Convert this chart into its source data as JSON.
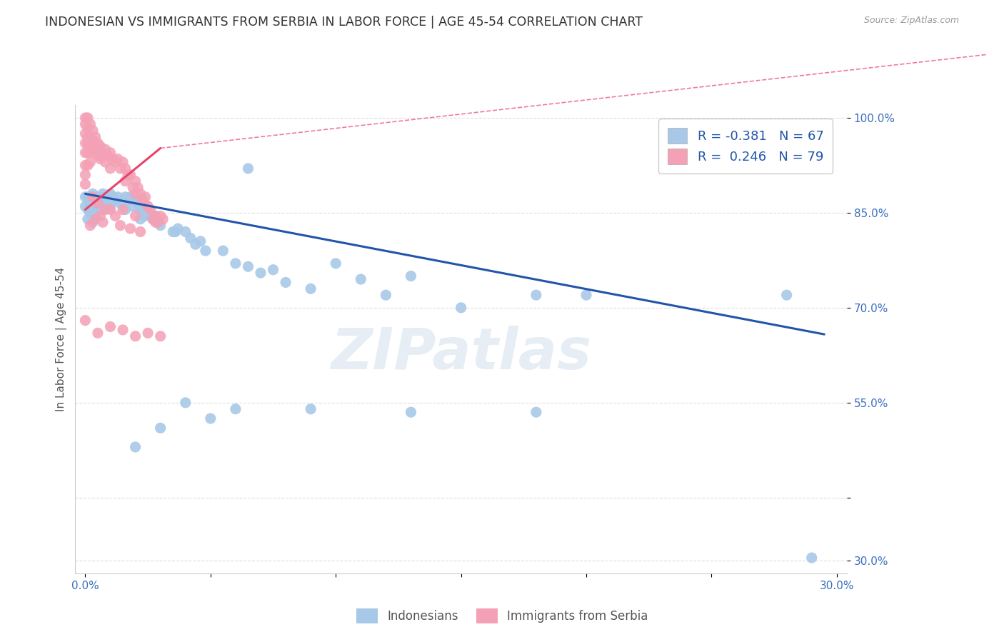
{
  "title": "INDONESIAN VS IMMIGRANTS FROM SERBIA IN LABOR FORCE | AGE 45-54 CORRELATION CHART",
  "source": "Source: ZipAtlas.com",
  "ylabel": "In Labor Force | Age 45-54",
  "xlim": [
    -0.004,
    0.304
  ],
  "ylim": [
    0.28,
    1.02
  ],
  "xticks": [
    0.0,
    0.05,
    0.1,
    0.15,
    0.2,
    0.25,
    0.3
  ],
  "ytick_positions": [
    0.3,
    0.4,
    0.55,
    0.7,
    0.85,
    1.0
  ],
  "ytick_labels": [
    "30.0%",
    "",
    "55.0%",
    "70.0%",
    "85.0%",
    "100.0%"
  ],
  "blue_color": "#A8C8E8",
  "pink_color": "#F4A0B5",
  "blue_line_color": "#2255AA",
  "pink_line_color": "#E8446A",
  "legend_r_blue": "-0.381",
  "legend_n_blue": "67",
  "legend_r_pink": "0.246",
  "legend_n_pink": "79",
  "legend_label_blue": "Indonesians",
  "legend_label_pink": "Immigrants from Serbia",
  "watermark": "ZIPatlas",
  "blue_trend_x": [
    0.0,
    0.295
  ],
  "blue_trend_y": [
    0.88,
    0.658
  ],
  "pink_trend_x": [
    0.0,
    0.03
  ],
  "pink_trend_y": [
    0.855,
    0.952
  ],
  "grid_color": "#DDDDDD",
  "scatter_size": 120,
  "background_color": "#FFFFFF",
  "blue_scatter": [
    [
      0.0,
      0.875
    ],
    [
      0.0,
      0.86
    ],
    [
      0.001,
      0.875
    ],
    [
      0.001,
      0.855
    ],
    [
      0.001,
      0.84
    ],
    [
      0.002,
      0.875
    ],
    [
      0.002,
      0.865
    ],
    [
      0.002,
      0.85
    ],
    [
      0.003,
      0.88
    ],
    [
      0.003,
      0.855
    ],
    [
      0.003,
      0.835
    ],
    [
      0.004,
      0.87
    ],
    [
      0.004,
      0.845
    ],
    [
      0.005,
      0.875
    ],
    [
      0.005,
      0.86
    ],
    [
      0.006,
      0.865
    ],
    [
      0.007,
      0.88
    ],
    [
      0.007,
      0.855
    ],
    [
      0.008,
      0.875
    ],
    [
      0.009,
      0.865
    ],
    [
      0.01,
      0.88
    ],
    [
      0.01,
      0.86
    ],
    [
      0.011,
      0.875
    ],
    [
      0.012,
      0.87
    ],
    [
      0.013,
      0.875
    ],
    [
      0.014,
      0.865
    ],
    [
      0.015,
      0.87
    ],
    [
      0.016,
      0.875
    ],
    [
      0.016,
      0.855
    ],
    [
      0.017,
      0.87
    ],
    [
      0.018,
      0.875
    ],
    [
      0.019,
      0.86
    ],
    [
      0.02,
      0.87
    ],
    [
      0.021,
      0.865
    ],
    [
      0.022,
      0.855
    ],
    [
      0.022,
      0.84
    ],
    [
      0.023,
      0.855
    ],
    [
      0.024,
      0.845
    ],
    [
      0.025,
      0.855
    ],
    [
      0.026,
      0.845
    ],
    [
      0.027,
      0.84
    ],
    [
      0.028,
      0.845
    ],
    [
      0.029,
      0.835
    ],
    [
      0.03,
      0.83
    ],
    [
      0.035,
      0.82
    ],
    [
      0.036,
      0.82
    ],
    [
      0.037,
      0.825
    ],
    [
      0.04,
      0.82
    ],
    [
      0.042,
      0.81
    ],
    [
      0.044,
      0.8
    ],
    [
      0.046,
      0.805
    ],
    [
      0.048,
      0.79
    ],
    [
      0.055,
      0.79
    ],
    [
      0.06,
      0.77
    ],
    [
      0.065,
      0.765
    ],
    [
      0.07,
      0.755
    ],
    [
      0.075,
      0.76
    ],
    [
      0.08,
      0.74
    ],
    [
      0.09,
      0.73
    ],
    [
      0.1,
      0.77
    ],
    [
      0.11,
      0.745
    ],
    [
      0.12,
      0.72
    ],
    [
      0.13,
      0.75
    ],
    [
      0.15,
      0.7
    ],
    [
      0.18,
      0.72
    ],
    [
      0.2,
      0.72
    ],
    [
      0.28,
      0.72
    ]
  ],
  "blue_scatter_outliers": [
    [
      0.065,
      0.92
    ],
    [
      0.13,
      0.535
    ],
    [
      0.18,
      0.535
    ],
    [
      0.06,
      0.54
    ],
    [
      0.09,
      0.54
    ],
    [
      0.04,
      0.55
    ],
    [
      0.05,
      0.525
    ],
    [
      0.03,
      0.51
    ],
    [
      0.02,
      0.48
    ],
    [
      0.29,
      0.305
    ]
  ],
  "pink_scatter": [
    [
      0.0,
      1.0
    ],
    [
      0.0,
      0.99
    ],
    [
      0.0,
      0.975
    ],
    [
      0.0,
      0.96
    ],
    [
      0.0,
      0.945
    ],
    [
      0.0,
      0.925
    ],
    [
      0.0,
      0.91
    ],
    [
      0.0,
      0.895
    ],
    [
      0.001,
      1.0
    ],
    [
      0.001,
      0.985
    ],
    [
      0.001,
      0.97
    ],
    [
      0.001,
      0.96
    ],
    [
      0.001,
      0.945
    ],
    [
      0.001,
      0.925
    ],
    [
      0.002,
      0.99
    ],
    [
      0.002,
      0.97
    ],
    [
      0.002,
      0.955
    ],
    [
      0.002,
      0.93
    ],
    [
      0.003,
      0.98
    ],
    [
      0.003,
      0.965
    ],
    [
      0.003,
      0.945
    ],
    [
      0.004,
      0.97
    ],
    [
      0.004,
      0.95
    ],
    [
      0.005,
      0.96
    ],
    [
      0.005,
      0.94
    ],
    [
      0.006,
      0.955
    ],
    [
      0.006,
      0.935
    ],
    [
      0.007,
      0.945
    ],
    [
      0.008,
      0.95
    ],
    [
      0.008,
      0.93
    ],
    [
      0.009,
      0.94
    ],
    [
      0.01,
      0.945
    ],
    [
      0.01,
      0.92
    ],
    [
      0.011,
      0.935
    ],
    [
      0.012,
      0.93
    ],
    [
      0.013,
      0.935
    ],
    [
      0.014,
      0.92
    ],
    [
      0.015,
      0.93
    ],
    [
      0.016,
      0.92
    ],
    [
      0.016,
      0.9
    ],
    [
      0.017,
      0.91
    ],
    [
      0.018,
      0.91
    ],
    [
      0.019,
      0.89
    ],
    [
      0.02,
      0.9
    ],
    [
      0.02,
      0.88
    ],
    [
      0.021,
      0.89
    ],
    [
      0.022,
      0.88
    ],
    [
      0.023,
      0.87
    ],
    [
      0.024,
      0.875
    ],
    [
      0.025,
      0.86
    ],
    [
      0.026,
      0.855
    ],
    [
      0.027,
      0.84
    ],
    [
      0.028,
      0.845
    ],
    [
      0.029,
      0.835
    ],
    [
      0.03,
      0.845
    ],
    [
      0.031,
      0.84
    ],
    [
      0.015,
      0.855
    ],
    [
      0.02,
      0.845
    ],
    [
      0.025,
      0.86
    ],
    [
      0.028,
      0.835
    ],
    [
      0.003,
      0.875
    ],
    [
      0.005,
      0.865
    ],
    [
      0.008,
      0.855
    ],
    [
      0.01,
      0.855
    ],
    [
      0.004,
      0.84
    ],
    [
      0.006,
      0.845
    ],
    [
      0.007,
      0.835
    ],
    [
      0.012,
      0.845
    ],
    [
      0.002,
      0.83
    ],
    [
      0.014,
      0.83
    ],
    [
      0.018,
      0.825
    ],
    [
      0.022,
      0.82
    ],
    [
      0.0,
      0.68
    ],
    [
      0.005,
      0.66
    ],
    [
      0.01,
      0.67
    ],
    [
      0.015,
      0.665
    ],
    [
      0.02,
      0.655
    ],
    [
      0.025,
      0.66
    ],
    [
      0.03,
      0.655
    ]
  ]
}
